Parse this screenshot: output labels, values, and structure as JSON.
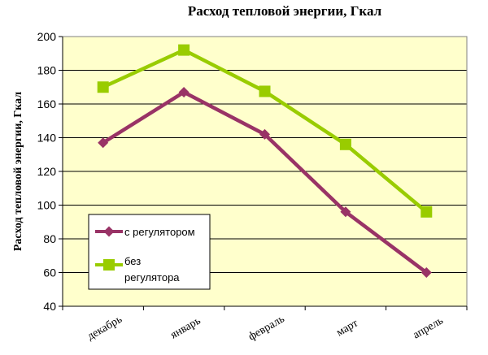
{
  "chart_data": {
    "type": "line",
    "title": "Расход тепловой энергии, Гкал",
    "xlabel": "",
    "ylabel": "Расход тепловой энергии, Гкал",
    "categories": [
      "декабрь",
      "январь",
      "февраль",
      "март",
      "апрель"
    ],
    "ylim": [
      40,
      200
    ],
    "yticks": [
      "40",
      "60",
      "80",
      "100",
      "120",
      "140",
      "160",
      "180",
      "200"
    ],
    "grid": true,
    "legend": "inside-lower-left",
    "plot_background": "#ffffcc",
    "series": [
      {
        "name": "с регулятором",
        "values": [
          137,
          167,
          142,
          96,
          60
        ],
        "color": "#993366",
        "marker": "diamond",
        "legend_lines": [
          "с регулятором"
        ]
      },
      {
        "name": "без регулятора",
        "values": [
          170,
          192,
          167.5,
          136,
          96
        ],
        "color": "#99cc00",
        "marker": "square",
        "legend_lines": [
          "без",
          "регулятора"
        ]
      }
    ]
  }
}
